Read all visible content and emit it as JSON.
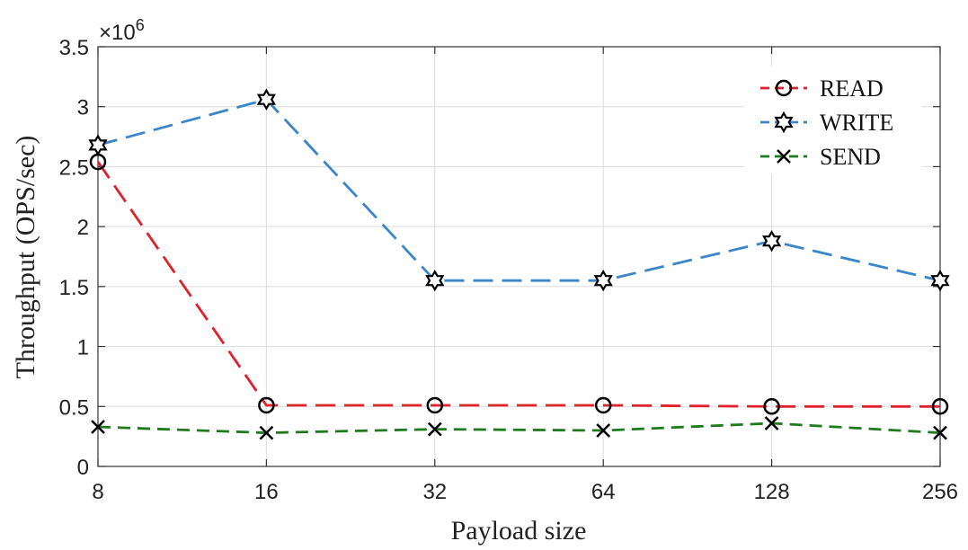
{
  "chart_data": {
    "type": "line",
    "categories": [
      "8",
      "16",
      "32",
      "64",
      "128",
      "256"
    ],
    "xlabel": "Payload size",
    "ylabel": "Throughput (OPS/sec)",
    "y_multiplier_label": "×10",
    "y_multiplier_exp": "6",
    "ylim": [
      0,
      3.5
    ],
    "yticks": [
      0,
      0.5,
      1,
      1.5,
      2,
      2.5,
      3,
      3.5
    ],
    "ytick_labels": [
      "0",
      "0.5",
      "1",
      "1.5",
      "2",
      "2.5",
      "3",
      "3.5"
    ],
    "grid": true,
    "legend_position": "top-right",
    "series": [
      {
        "name": "READ",
        "color": "#e0202a",
        "marker": "circle",
        "values": [
          2.54,
          0.51,
          0.51,
          0.51,
          0.5,
          0.5
        ]
      },
      {
        "name": "WRITE",
        "color": "#3a86c8",
        "marker": "star",
        "values": [
          2.68,
          3.06,
          1.55,
          1.55,
          1.88,
          1.55
        ]
      },
      {
        "name": "SEND",
        "color": "#1f7a1f",
        "marker": "x",
        "values": [
          0.33,
          0.28,
          0.31,
          0.3,
          0.36,
          0.28
        ]
      }
    ]
  }
}
